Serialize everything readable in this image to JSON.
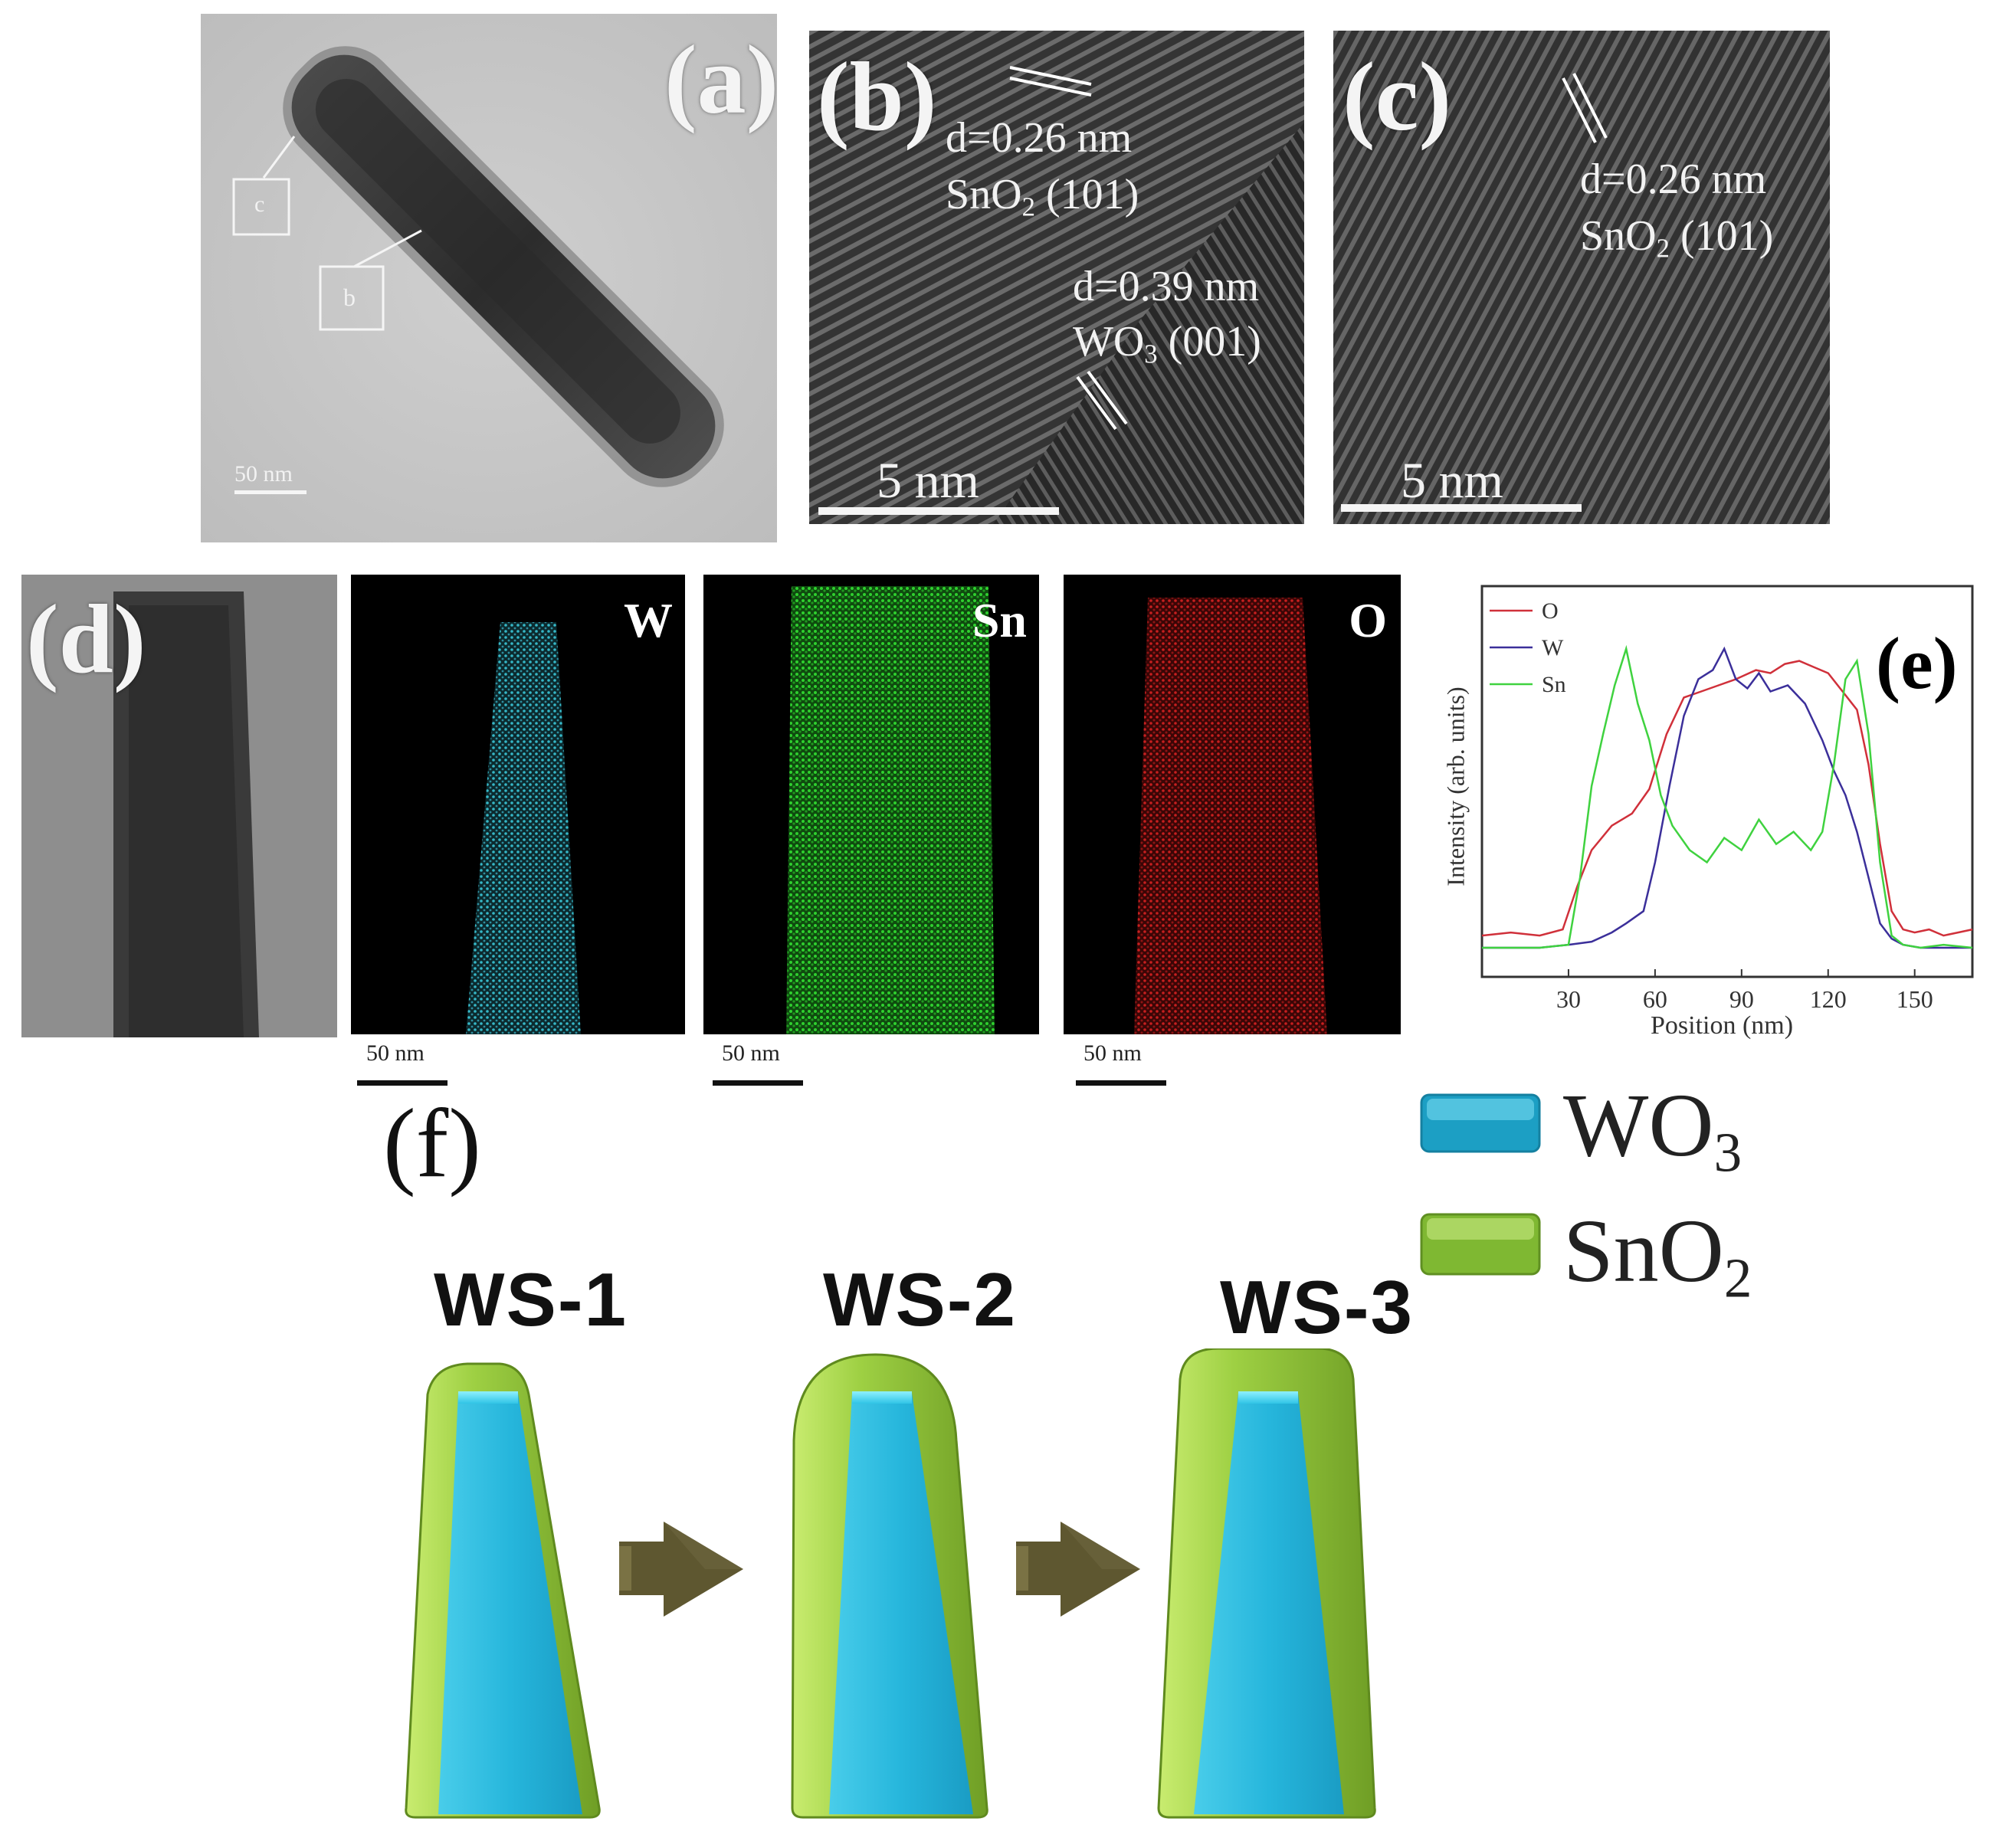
{
  "panel_a": {
    "label": "(a)",
    "box_c": "c",
    "box_b": "b",
    "scalebar": "50 nm"
  },
  "panel_b": {
    "label": "(b)",
    "annot1_d": "d=0.26 nm",
    "annot1_plane_formula": "SnO",
    "annot1_plane_sub": "2",
    "annot1_plane_hkl": " (101)",
    "annot2_d": "d=0.39 nm",
    "annot2_plane_formula": "WO",
    "annot2_plane_sub": "3",
    "annot2_plane_hkl": " (001)",
    "scalebar": "5 nm"
  },
  "panel_c": {
    "label": "(c)",
    "annot_d": "d=0.26 nm",
    "annot_plane_formula": "SnO",
    "annot_plane_sub": "2",
    "annot_plane_hkl": " (101)",
    "scalebar": "5 nm"
  },
  "panel_d": {
    "label": "(d)",
    "maps": [
      {
        "element": "W",
        "color": "#36b8c8"
      },
      {
        "element": "Sn",
        "color": "#2fd02f"
      },
      {
        "element": "O",
        "color": "#c81f1f"
      }
    ],
    "scalebar": "50 nm"
  },
  "panel_e": {
    "label": "(e)",
    "chart_data": {
      "type": "line",
      "xlabel": "Position (nm)",
      "ylabel": "Intensity (arb. units)",
      "xlim": [
        0,
        170
      ],
      "ylim": [
        0,
        1
      ],
      "xticks": [
        30,
        60,
        90,
        120,
        150
      ],
      "legend_position": "top-left",
      "grid": false,
      "series": [
        {
          "name": "O",
          "color": "#d0303a",
          "x": [
            0,
            10,
            20,
            28,
            33,
            38,
            45,
            52,
            58,
            64,
            70,
            76,
            82,
            88,
            95,
            100,
            105,
            110,
            115,
            120,
            125,
            130,
            134,
            138,
            142,
            146,
            150,
            155,
            160,
            165,
            170
          ],
          "y": [
            0.06,
            0.07,
            0.06,
            0.08,
            0.22,
            0.34,
            0.42,
            0.46,
            0.54,
            0.72,
            0.84,
            0.86,
            0.88,
            0.9,
            0.93,
            0.92,
            0.95,
            0.96,
            0.94,
            0.92,
            0.86,
            0.8,
            0.62,
            0.36,
            0.14,
            0.08,
            0.07,
            0.08,
            0.06,
            0.07,
            0.08
          ]
        },
        {
          "name": "W",
          "color": "#3b2f9a",
          "x": [
            0,
            10,
            20,
            30,
            38,
            45,
            50,
            56,
            60,
            65,
            70,
            75,
            80,
            84,
            88,
            92,
            96,
            100,
            106,
            112,
            118,
            122,
            126,
            130,
            134,
            138,
            142,
            146,
            152,
            160,
            170
          ],
          "y": [
            0.02,
            0.02,
            0.02,
            0.03,
            0.04,
            0.07,
            0.1,
            0.14,
            0.3,
            0.55,
            0.78,
            0.9,
            0.93,
            1.0,
            0.9,
            0.87,
            0.92,
            0.86,
            0.88,
            0.82,
            0.7,
            0.6,
            0.52,
            0.4,
            0.25,
            0.1,
            0.05,
            0.03,
            0.02,
            0.02,
            0.02
          ]
        },
        {
          "name": "Sn",
          "color": "#3fd23f",
          "x": [
            0,
            10,
            20,
            30,
            34,
            38,
            42,
            46,
            50,
            54,
            58,
            62,
            66,
            72,
            78,
            84,
            90,
            96,
            102,
            108,
            114,
            118,
            122,
            126,
            130,
            134,
            138,
            142,
            146,
            152,
            160,
            170
          ],
          "y": [
            0.02,
            0.02,
            0.02,
            0.03,
            0.25,
            0.55,
            0.72,
            0.88,
            1.0,
            0.82,
            0.7,
            0.52,
            0.42,
            0.34,
            0.3,
            0.38,
            0.34,
            0.44,
            0.36,
            0.4,
            0.34,
            0.4,
            0.62,
            0.9,
            0.96,
            0.72,
            0.3,
            0.06,
            0.03,
            0.02,
            0.03,
            0.02
          ]
        }
      ]
    }
  },
  "panel_f": {
    "label": "(f)",
    "legend": [
      {
        "formula": "WO",
        "sub": "3",
        "color": "#29bde0"
      },
      {
        "formula": "SnO",
        "sub": "2",
        "color": "#8cc63c"
      }
    ],
    "samples": [
      "WS-1",
      "WS-2",
      "WS-3"
    ]
  }
}
